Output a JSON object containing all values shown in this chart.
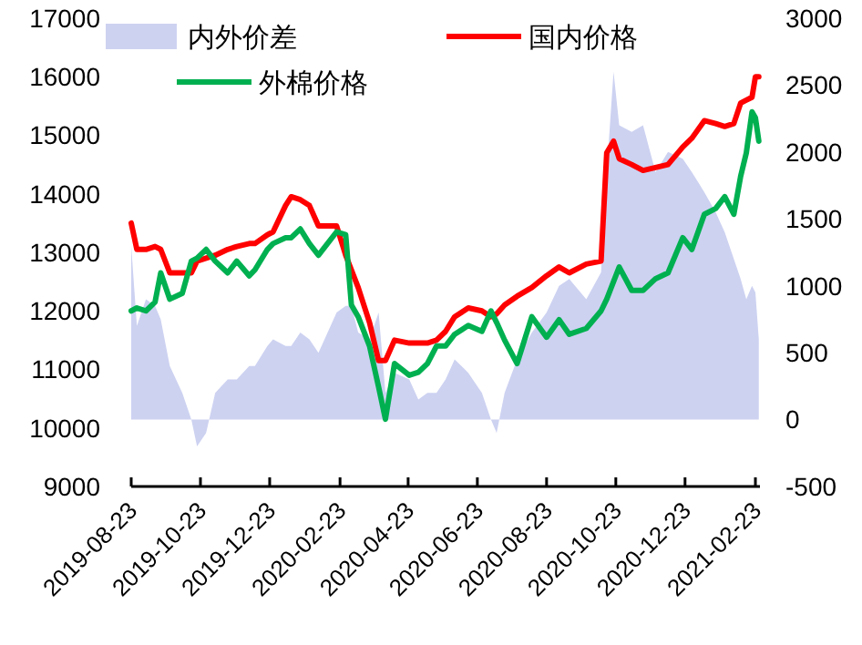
{
  "chart_data": {
    "type": "line",
    "x": [
      "2019-08-23",
      "2019-08-28",
      "2019-09-05",
      "2019-09-13",
      "2019-09-18",
      "2019-09-26",
      "2019-10-07",
      "2019-10-15",
      "2019-10-20",
      "2019-10-28",
      "2019-11-05",
      "2019-11-16",
      "2019-11-24",
      "2019-12-05",
      "2019-12-10",
      "2019-12-21",
      "2019-12-26",
      "2020-01-06",
      "2020-01-11",
      "2020-01-19",
      "2020-01-27",
      "2020-02-04",
      "2020-02-20",
      "2020-02-28",
      "2020-03-04",
      "2020-03-10",
      "2020-03-20",
      "2020-03-28",
      "2020-04-03",
      "2020-04-11",
      "2020-04-24",
      "2020-05-02",
      "2020-05-10",
      "2020-05-18",
      "2020-05-26",
      "2020-06-03",
      "2020-06-15",
      "2020-06-27",
      "2020-07-05",
      "2020-07-10",
      "2020-07-17",
      "2020-07-28",
      "2020-08-10",
      "2020-08-23",
      "2020-09-03",
      "2020-09-12",
      "2020-09-27",
      "2020-10-10",
      "2020-10-15",
      "2020-10-21",
      "2020-10-26",
      "2020-11-06",
      "2020-11-16",
      "2020-11-27",
      "2020-12-08",
      "2020-12-21",
      "2020-12-29",
      "2021-01-09",
      "2021-01-19",
      "2021-01-27",
      "2021-02-04",
      "2021-02-10",
      "2021-02-15",
      "2021-02-20",
      "2021-02-23",
      "2021-02-26"
    ],
    "series": [
      {
        "name": "内外价差",
        "type": "area",
        "axis": "y2",
        "color": "#cdd2f1",
        "values": [
          1300,
          700,
          900,
          850,
          750,
          400,
          200,
          0,
          -200,
          -100,
          200,
          300,
          300,
          400,
          400,
          550,
          600,
          550,
          550,
          650,
          600,
          500,
          800,
          850,
          850,
          650,
          600,
          800,
          200,
          350,
          300,
          150,
          200,
          200,
          300,
          450,
          350,
          200,
          0,
          -100,
          200,
          450,
          650,
          800,
          1000,
          1050,
          900,
          1100,
          1850,
          2600,
          2200,
          2150,
          2200,
          1850,
          2000,
          1950,
          1850,
          1700,
          1550,
          1400,
          1200,
          1050,
          900,
          1000,
          950,
          600
        ]
      },
      {
        "name": "国内价格",
        "color": "#ff0000",
        "values": [
          13500,
          13050,
          13050,
          13100,
          13050,
          12650,
          12650,
          12650,
          12850,
          12900,
          12950,
          13050,
          13100,
          13150,
          13150,
          13300,
          13350,
          13800,
          13950,
          13900,
          13800,
          13450,
          13450,
          12950,
          12700,
          12400,
          11800,
          11150,
          11150,
          11500,
          11450,
          11450,
          11450,
          11500,
          11650,
          11900,
          12050,
          12000,
          11900,
          11950,
          12100,
          12250,
          12400,
          12600,
          12750,
          12650,
          12800,
          12850,
          14700,
          14900,
          14600,
          14500,
          14400,
          14450,
          14500,
          14800,
          14950,
          15250,
          15200,
          15150,
          15200,
          15550,
          15600,
          15650,
          16000,
          16000
        ]
      },
      {
        "name": "外棉价格",
        "color": "#00b050",
        "values": [
          12000,
          12050,
          12000,
          12150,
          12650,
          12200,
          12300,
          12850,
          12900,
          13050,
          12850,
          12650,
          12850,
          12600,
          12700,
          13050,
          13150,
          13250,
          13250,
          13400,
          13150,
          12950,
          13350,
          13300,
          12100,
          11900,
          11400,
          10700,
          10150,
          11100,
          10900,
          10950,
          11100,
          11400,
          11400,
          11600,
          11750,
          11650,
          12000,
          11800,
          11500,
          11100,
          11900,
          11550,
          11850,
          11600,
          11700,
          12000,
          12200,
          12500,
          12750,
          12350,
          12350,
          12550,
          12650,
          13250,
          13050,
          13650,
          13750,
          13950,
          13650,
          14300,
          14700,
          15400,
          15300,
          14900
        ]
      }
    ],
    "xlim": [
      "2019-08-23",
      "2021-02-27"
    ],
    "xticks": [
      "2019-08-23",
      "2019-10-23",
      "2019-12-23",
      "2020-02-23",
      "2020-04-23",
      "2020-06-23",
      "2020-08-23",
      "2020-10-23",
      "2020-12-23",
      "2021-02-23"
    ],
    "ylim": [
      9000,
      17000
    ],
    "yticks": [
      9000,
      10000,
      11000,
      12000,
      13000,
      14000,
      15000,
      16000,
      17000
    ],
    "y2lim": [
      -500,
      3000
    ],
    "y2ticks": [
      -500,
      0,
      500,
      1000,
      1500,
      2000,
      2500,
      3000
    ],
    "legend": "top",
    "grid": false
  }
}
